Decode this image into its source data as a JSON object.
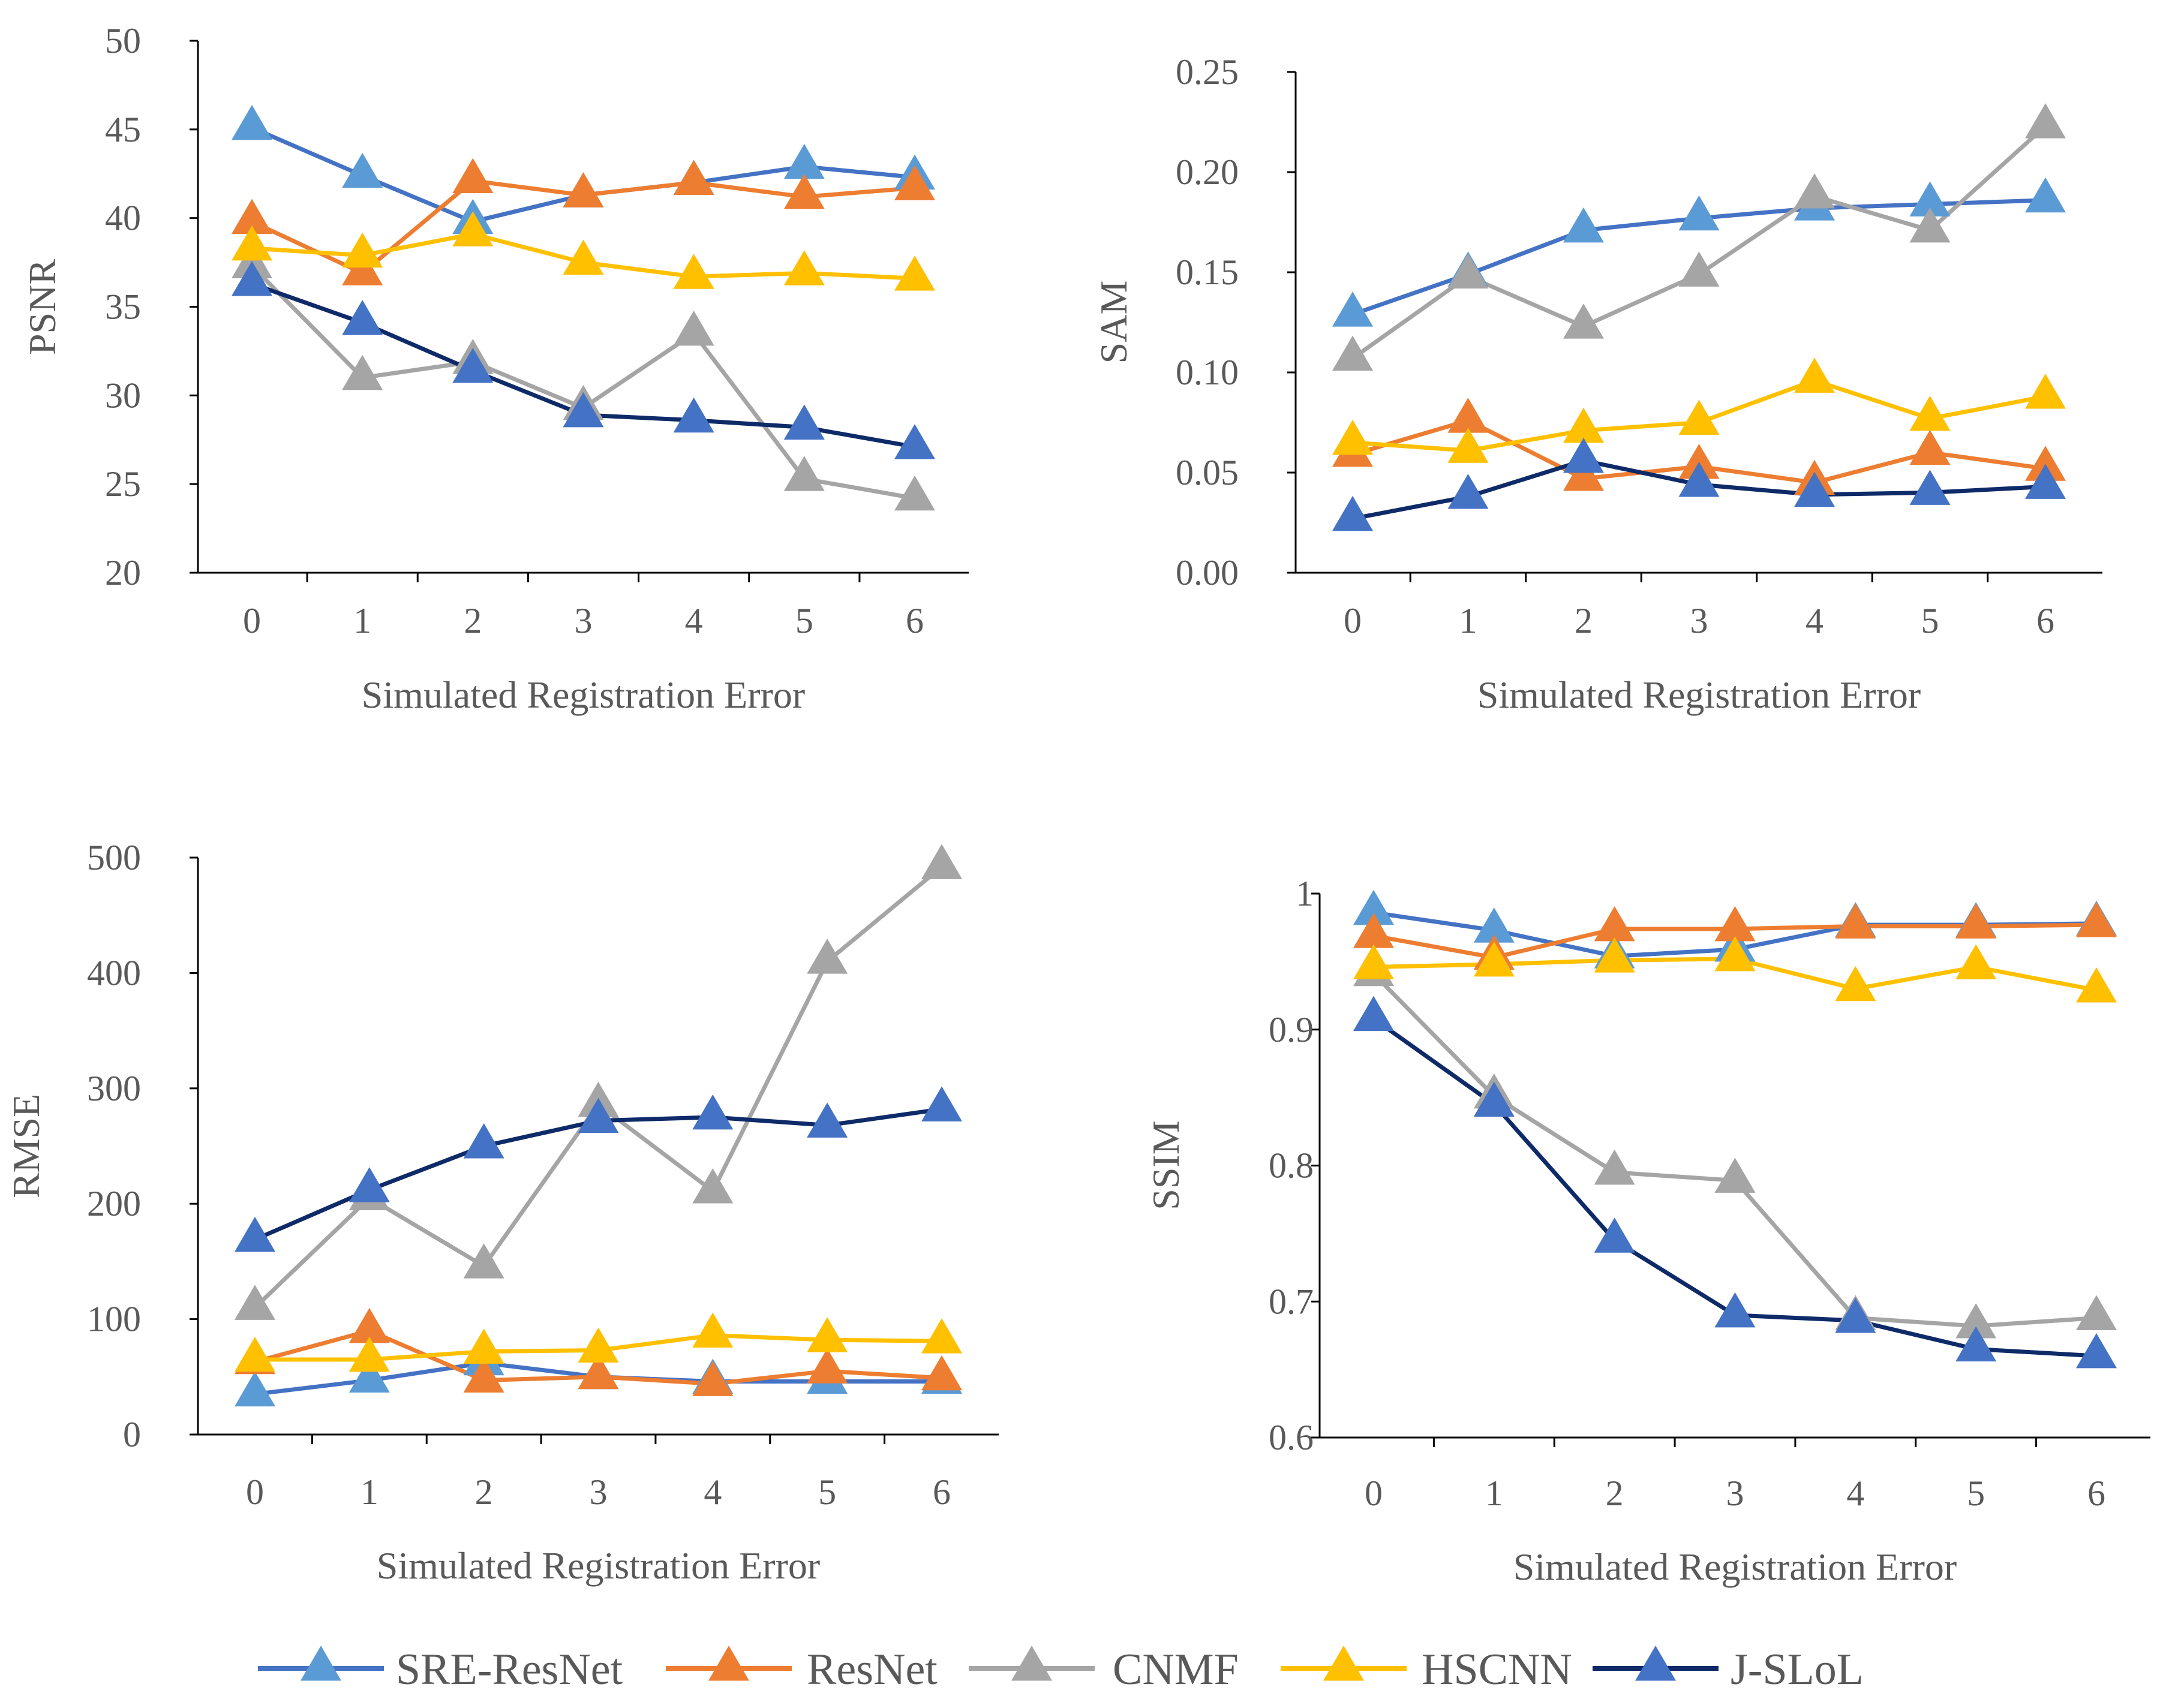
{
  "series_styles": [
    {
      "key": "SRE-ResNet",
      "line": "#4472c4",
      "marker": "#5b9bd5"
    },
    {
      "key": "ResNet",
      "line": "#ed7d31",
      "marker": "#ed7d31"
    },
    {
      "key": "CNMF",
      "line": "#a5a5a5",
      "marker": "#a5a5a5"
    },
    {
      "key": "HSCNN",
      "line": "#ffc000",
      "marker": "#ffc000"
    },
    {
      "key": "J-SLoL",
      "line": "#0e2a68",
      "marker": "#4472c4"
    }
  ],
  "legend": {
    "items": [
      "SRE-ResNet",
      "ResNet",
      "CNMF",
      "HSCNN",
      "J-SLoL"
    ]
  },
  "chart_data": [
    {
      "id": "psnr",
      "type": "line",
      "xlabel": "Simulated Registration Error",
      "ylabel": "PSNR",
      "categories": [
        "0",
        "1",
        "2",
        "3",
        "4",
        "5",
        "6"
      ],
      "ylim": [
        20,
        50
      ],
      "yticks": [
        "20",
        "25",
        "30",
        "35",
        "40",
        "45",
        "50"
      ],
      "series": [
        {
          "name": "SRE-ResNet",
          "values": [
            45.1,
            42.4,
            39.8,
            41.3,
            42.0,
            42.9,
            42.3
          ]
        },
        {
          "name": "ResNet",
          "values": [
            39.8,
            36.9,
            42.1,
            41.3,
            42.0,
            41.2,
            41.7
          ]
        },
        {
          "name": "CNMF",
          "values": [
            37.3,
            31.0,
            31.9,
            29.3,
            33.5,
            25.3,
            24.2
          ]
        },
        {
          "name": "HSCNN",
          "values": [
            38.3,
            37.9,
            39.1,
            37.5,
            36.7,
            36.9,
            36.6
          ]
        },
        {
          "name": "J-SLoL",
          "values": [
            36.3,
            34.1,
            31.4,
            28.9,
            28.6,
            28.2,
            27.1
          ]
        }
      ]
    },
    {
      "id": "sam",
      "type": "line",
      "xlabel": "Simulated Registration Error",
      "ylabel": "SAM",
      "categories": [
        "0",
        "1",
        "2",
        "3",
        "4",
        "5",
        "6"
      ],
      "ylim": [
        0,
        0.25
      ],
      "yticks": [
        "0.00",
        "0.05",
        "0.10",
        "0.15",
        "0.20",
        "0.25"
      ],
      "series": [
        {
          "name": "SRE-ResNet",
          "values": [
            0.129,
            0.149,
            0.171,
            0.177,
            0.182,
            0.184,
            0.186
          ]
        },
        {
          "name": "ResNet",
          "values": [
            0.059,
            0.076,
            0.047,
            0.053,
            0.045,
            0.06,
            0.052
          ]
        },
        {
          "name": "CNMF",
          "values": [
            0.107,
            0.148,
            0.123,
            0.149,
            0.188,
            0.171,
            0.223
          ]
        },
        {
          "name": "HSCNN",
          "values": [
            0.065,
            0.061,
            0.071,
            0.075,
            0.096,
            0.077,
            0.088
          ]
        },
        {
          "name": "J-SLoL",
          "values": [
            0.027,
            0.038,
            0.056,
            0.044,
            0.039,
            0.04,
            0.043
          ]
        }
      ]
    },
    {
      "id": "rmse",
      "type": "line",
      "xlabel": "Simulated Registration Error",
      "ylabel": "RMSE",
      "categories": [
        "0",
        "1",
        "2",
        "3",
        "4",
        "5",
        "6"
      ],
      "ylim": [
        0,
        500
      ],
      "yticks": [
        "0",
        "100",
        "200",
        "300",
        "400",
        "500"
      ],
      "series": [
        {
          "name": "SRE-ResNet",
          "values": [
            35,
            47,
            62,
            50,
            46,
            46,
            46
          ]
        },
        {
          "name": "ResNet",
          "values": [
            63,
            90,
            47,
            50,
            44,
            55,
            49
          ]
        },
        {
          "name": "CNMF",
          "values": [
            110,
            205,
            146,
            286,
            211,
            410,
            492
          ]
        },
        {
          "name": "HSCNN",
          "values": [
            65,
            65,
            72,
            73,
            86,
            82,
            81
          ]
        },
        {
          "name": "J-SLoL",
          "values": [
            169,
            212,
            250,
            272,
            275,
            268,
            282
          ]
        }
      ]
    },
    {
      "id": "ssim",
      "type": "line",
      "xlabel": "Simulated Registration Error",
      "ylabel": "SSIM",
      "categories": [
        "0",
        "1",
        "2",
        "3",
        "4",
        "5",
        "6"
      ],
      "ylim": [
        0.6,
        1.0
      ],
      "yticks": [
        "0.6",
        "0.7",
        "0.8",
        "0.9",
        "1"
      ],
      "series": [
        {
          "name": "SRE-ResNet",
          "values": [
            0.986,
            0.973,
            0.954,
            0.959,
            0.977,
            0.977,
            0.978
          ]
        },
        {
          "name": "ResNet",
          "values": [
            0.969,
            0.953,
            0.974,
            0.974,
            0.976,
            0.976,
            0.977
          ]
        },
        {
          "name": "CNMF",
          "values": [
            0.941,
            0.851,
            0.795,
            0.789,
            0.688,
            0.682,
            0.688
          ]
        },
        {
          "name": "HSCNN",
          "values": [
            0.946,
            0.948,
            0.951,
            0.952,
            0.93,
            0.946,
            0.929
          ]
        },
        {
          "name": "J-SLoL",
          "values": [
            0.908,
            0.845,
            0.745,
            0.69,
            0.686,
            0.665,
            0.66
          ]
        }
      ]
    }
  ]
}
